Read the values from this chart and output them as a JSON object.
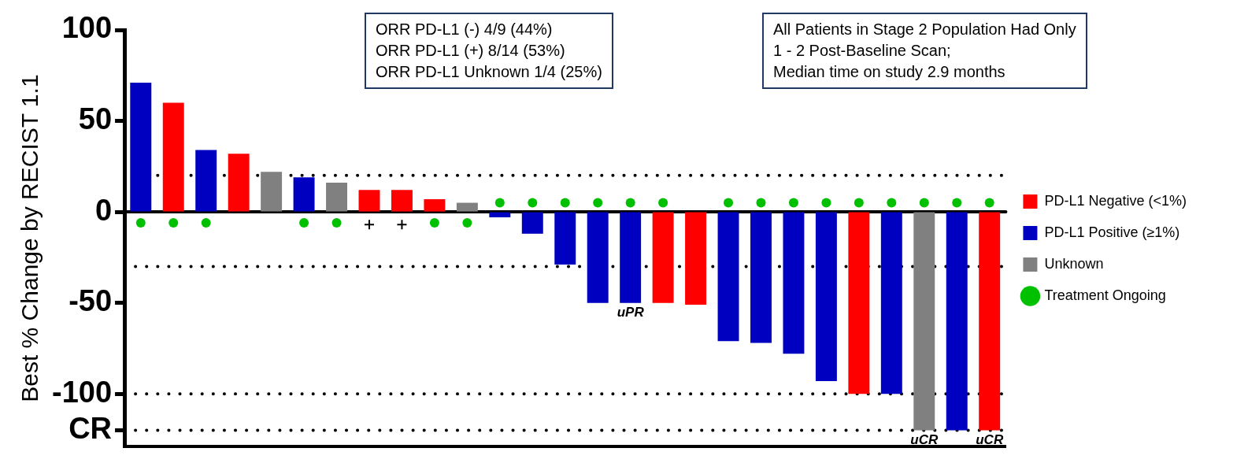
{
  "chart_data": {
    "type": "bar",
    "ylabel": "Best % Change by RECIST 1.1",
    "categories": [
      null,
      null,
      null,
      null,
      null,
      null,
      null,
      null,
      null,
      null,
      null,
      null,
      null,
      null,
      null,
      null,
      null,
      null,
      null,
      null,
      null,
      null,
      null,
      null,
      null,
      null,
      null
    ],
    "series": [
      {
        "name": "PD-L1 Negative (<1%)",
        "color": "#ff0000",
        "values": [
          null,
          60,
          null,
          32,
          null,
          null,
          null,
          12,
          12,
          7,
          null,
          null,
          null,
          null,
          null,
          null,
          -50,
          -51,
          null,
          null,
          null,
          null,
          -100,
          null,
          null,
          null,
          -120
        ],
        "value_labels": [
          null,
          null,
          null,
          null,
          null,
          null,
          null,
          null,
          null,
          null,
          null,
          null,
          null,
          null,
          null,
          null,
          null,
          null,
          null,
          null,
          null,
          null,
          null,
          null,
          null,
          null,
          "uCR"
        ]
      },
      {
        "name": "PD-L1 Positive (≥1%)",
        "color": "#0000c0",
        "values": [
          71,
          null,
          34,
          null,
          null,
          19,
          null,
          null,
          null,
          null,
          null,
          -3,
          -12,
          -29,
          -50,
          -50,
          null,
          null,
          -71,
          -72,
          -78,
          -93,
          null,
          -100,
          null,
          -120,
          null
        ],
        "value_labels": [
          null,
          null,
          null,
          null,
          null,
          null,
          null,
          null,
          null,
          null,
          null,
          null,
          null,
          null,
          null,
          "uPR",
          null,
          null,
          null,
          null,
          null,
          null,
          null,
          null,
          null,
          null,
          null
        ]
      },
      {
        "name": "Unknown",
        "color": "#808080",
        "values": [
          null,
          null,
          null,
          null,
          22,
          null,
          16,
          null,
          null,
          null,
          5,
          null,
          null,
          null,
          null,
          null,
          null,
          null,
          null,
          null,
          null,
          null,
          null,
          null,
          -120,
          null,
          null
        ],
        "value_labels": [
          null,
          null,
          null,
          null,
          null,
          null,
          null,
          null,
          null,
          null,
          null,
          null,
          null,
          null,
          null,
          null,
          null,
          null,
          null,
          null,
          null,
          null,
          null,
          null,
          "uCR",
          null,
          null
        ]
      },
      {
        "name": "Treatment Ongoing",
        "type": "scatter",
        "marker": "circle",
        "color": "#00c000",
        "values": [
          -6,
          -6,
          -6,
          null,
          null,
          -6,
          -6,
          null,
          null,
          -6,
          -6,
          5,
          5,
          5,
          5,
          5,
          5,
          null,
          5,
          5,
          5,
          5,
          5,
          5,
          5,
          5,
          5
        ]
      },
      {
        "type": "scatter",
        "marker": "cross",
        "color": "#000000",
        "values": [
          null,
          null,
          null,
          null,
          null,
          null,
          null,
          -7,
          -7,
          null,
          null,
          null,
          null,
          null,
          null,
          null,
          null,
          null,
          null,
          null,
          null,
          null,
          null,
          null,
          null,
          null,
          null
        ]
      }
    ],
    "ylim": [
      -129,
      100
    ],
    "yticks": [
      100,
      50,
      0,
      -50,
      -100,
      {
        "value": -120,
        "label": "CR"
      }
    ],
    "ref_lines": [
      {
        "axis": "y",
        "value": 0,
        "line_style": "solid",
        "color": "#000000"
      },
      {
        "axis": "y",
        "value": 20,
        "line_style": "dotted",
        "color": "#000000"
      },
      {
        "axis": "y",
        "value": -30,
        "line_style": "dotted",
        "color": "#000000"
      },
      {
        "axis": "y",
        "value": -100,
        "line_style": "dotted",
        "color": "#000000"
      },
      {
        "axis": "y",
        "value": -120,
        "line_style": "dotted",
        "color": "#000000"
      }
    ],
    "annotations": [
      "ORR PD-L1 (-) 4/9 (44%)\nORR PD-L1 (+) 8/14 (53%)\nORR PD-L1 Unknown 1/4 (25%)",
      "All Patients in Stage 2 Population Had Only\n1 - 2 Post-Baseline Scan;\nMedian time on study 2.9 months"
    ],
    "legend": "right",
    "grid": false,
    "tick_labels": "y"
  }
}
